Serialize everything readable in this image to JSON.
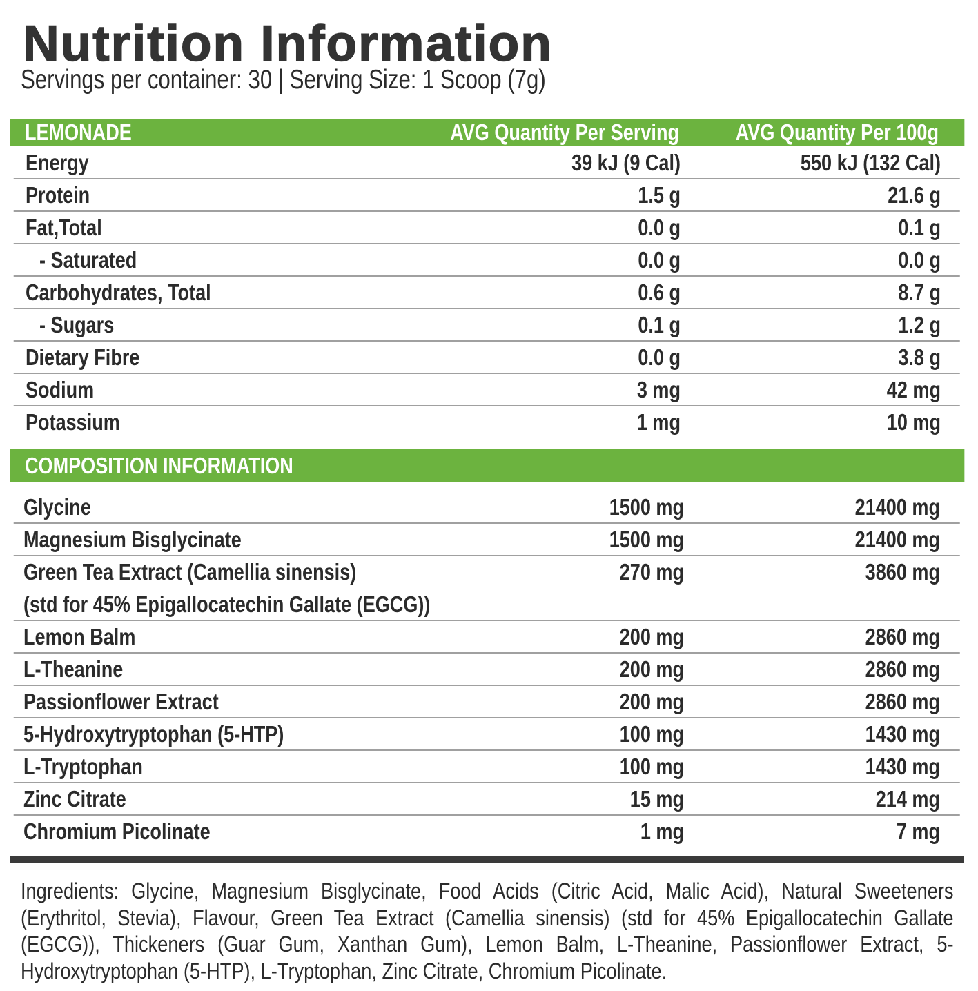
{
  "header": {
    "title": "Nutrition Information",
    "subtitle": "Servings per container: 30 | Serving Size: 1 Scoop (7g)"
  },
  "nutrition": {
    "columns": [
      "LEMONADE",
      "AVG Quantity Per Serving",
      "AVG Quantity Per 100g"
    ],
    "rows": [
      [
        "Energy",
        "39 kJ (9 Cal)",
        "550 kJ (132 Cal)"
      ],
      [
        "Protein",
        "1.5 g",
        "21.6 g"
      ],
      [
        "Fat,Total",
        "0.0 g",
        "0.1 g"
      ],
      [
        "- Saturated",
        "0.0 g",
        "0.0 g"
      ],
      [
        "Carbohydrates, Total",
        "0.6 g",
        "8.7 g"
      ],
      [
        "- Sugars",
        "0.1 g",
        "1.2 g"
      ],
      [
        "Dietary Fibre",
        "0.0 g",
        "3.8 g"
      ],
      [
        "Sodium",
        "3 mg",
        "42 mg"
      ],
      [
        "Potassium",
        "1 mg",
        "10 mg"
      ]
    ]
  },
  "composition": {
    "title": "COMPOSITION INFORMATION",
    "rows": [
      {
        "name": "Glycine",
        "serving": "1500 mg",
        "per_100g": "21400 mg"
      },
      {
        "name": "Magnesium Bisglycinate",
        "serving": "1500 mg",
        "per_100g": "21400 mg"
      },
      {
        "name": "Green Tea Extract (Camellia sinensis)",
        "note": "(std for 45% Epigallocatechin Gallate (EGCG))",
        "serving": "270 mg",
        "per_100g": "3860 mg"
      },
      {
        "name": "Lemon Balm",
        "serving": "200 mg",
        "per_100g": "2860 mg"
      },
      {
        "name": "L-Theanine",
        "serving": "200 mg",
        "per_100g": "2860 mg"
      },
      {
        "name": "Passionflower Extract",
        "serving": "200 mg",
        "per_100g": "2860 mg"
      },
      {
        "name": "5-Hydroxytryptophan (5-HTP)",
        "serving": "100 mg",
        "per_100g": "1430 mg"
      },
      {
        "name": "L-Tryptophan",
        "serving": "100 mg",
        "per_100g": "1430 mg"
      },
      {
        "name": "Zinc Citrate",
        "serving": "15 mg",
        "per_100g": "214 mg"
      },
      {
        "name": "Chromium Picolinate",
        "serving": "1 mg",
        "per_100g": "7 mg"
      }
    ]
  },
  "ingredients": "Ingredients: Glycine, Magnesium Bisglycinate, Food Acids (Citric Acid, Malic Acid), Natural Sweeteners (Erythritol, Stevia), Flavour, Green Tea Extract (Camellia sinensis) (std for 45% Epigallocatechin Gallate (EGCG)), Thickeners (Guar Gum, Xanthan Gum), Lemon Balm, L-Theanine, Passionflower Extract, 5-Hydroxytryptophan (5-HTP), L-Tryptophan, Zinc Citrate, Chromium Picolinate."
}
